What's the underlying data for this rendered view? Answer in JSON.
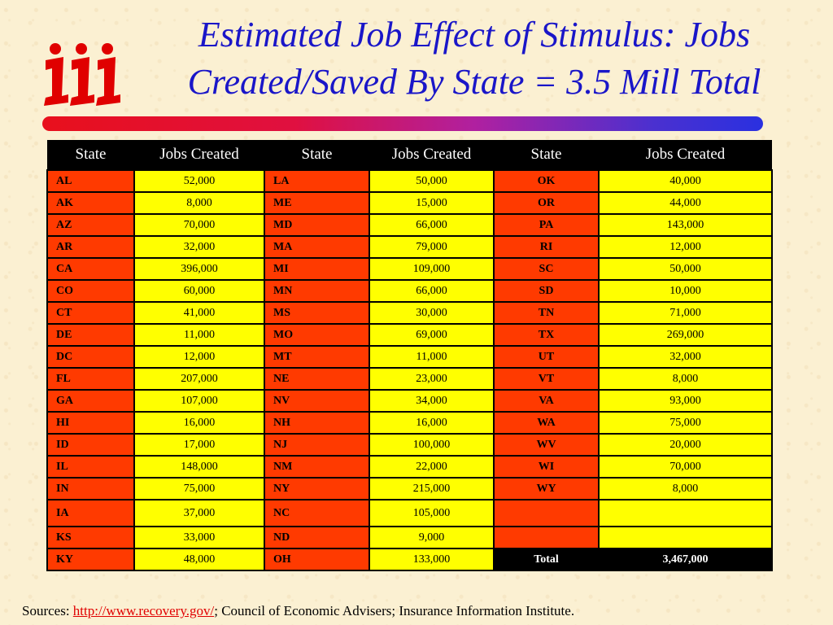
{
  "slide": {
    "title_line1": "Estimated Job Effect of Stimulus: Jobs",
    "title_line2": "Created/Saved By State = 3.5 Mill Total",
    "logo_text": "iii",
    "brand_colors": {
      "title": "#1a16c8",
      "state_cell": "#ff3a00",
      "jobs_cell": "#ffff00",
      "header": "#000000"
    }
  },
  "table": {
    "headers": [
      "State",
      "Jobs Created",
      "State",
      "Jobs Created",
      "State",
      "Jobs Created"
    ],
    "rows": [
      [
        "AL",
        "52,000",
        "LA",
        "50,000",
        "OK",
        "40,000"
      ],
      [
        "AK",
        "8,000",
        "ME",
        "15,000",
        "OR",
        "44,000"
      ],
      [
        "AZ",
        "70,000",
        "MD",
        "66,000",
        "PA",
        "143,000"
      ],
      [
        "AR",
        "32,000",
        "MA",
        "79,000",
        "RI",
        "12,000"
      ],
      [
        "CA",
        "396,000",
        "MI",
        "109,000",
        "SC",
        "50,000"
      ],
      [
        "CO",
        "60,000",
        "MN",
        "66,000",
        "SD",
        "10,000"
      ],
      [
        "CT",
        "41,000",
        "MS",
        "30,000",
        "TN",
        "71,000"
      ],
      [
        "DE",
        "11,000",
        "MO",
        "69,000",
        "TX",
        "269,000"
      ],
      [
        "DC",
        "12,000",
        "MT",
        "11,000",
        "UT",
        "32,000"
      ],
      [
        "FL",
        "207,000",
        "NE",
        "23,000",
        "VT",
        "8,000"
      ],
      [
        "GA",
        "107,000",
        "NV",
        "34,000",
        "VA",
        "93,000"
      ],
      [
        "HI",
        "16,000",
        "NH",
        "16,000",
        "WA",
        "75,000"
      ],
      [
        "ID",
        "17,000",
        "NJ",
        "100,000",
        "WV",
        "20,000"
      ],
      [
        "IL",
        "148,000",
        "NM",
        "22,000",
        "WI",
        "70,000"
      ],
      [
        "IN",
        "75,000",
        "NY",
        "215,000",
        "WY",
        "8,000"
      ],
      [
        "IA",
        "37,000",
        "NC",
        "105,000",
        "",
        ""
      ],
      [
        "KS",
        "33,000",
        "ND",
        "9,000",
        "",
        ""
      ],
      [
        "KY",
        "48,000",
        "OH",
        "133,000",
        "Total",
        "3,467,000"
      ]
    ]
  },
  "sources": {
    "prefix": "Sources: ",
    "link_text": "http://www.recovery.gov/",
    "suffix": "; Council of Economic Advisers; Insurance Information Institute."
  }
}
